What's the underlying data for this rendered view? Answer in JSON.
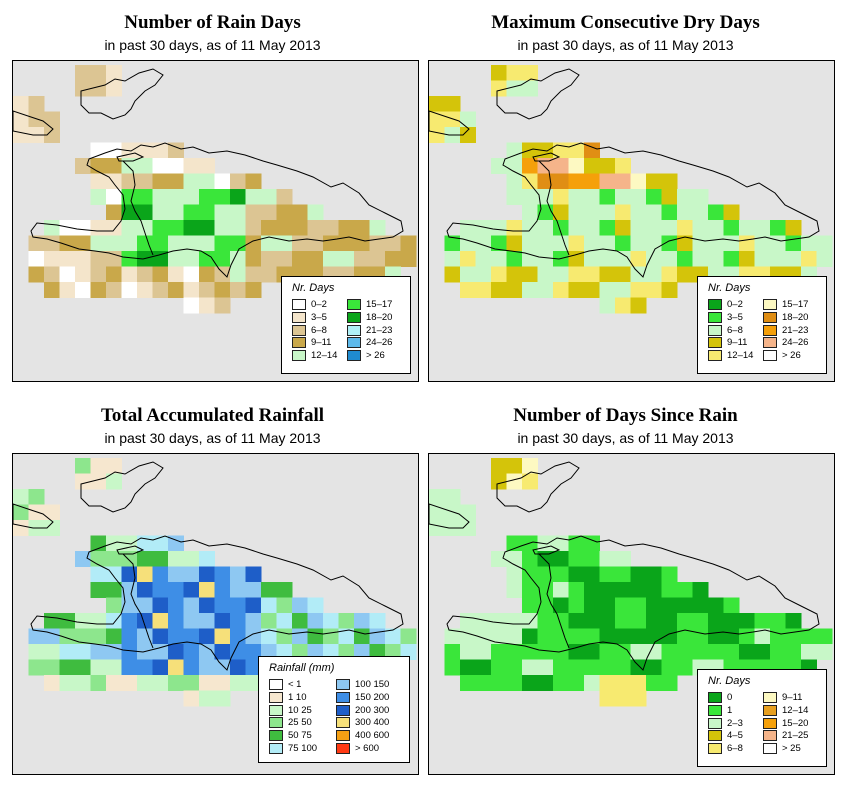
{
  "colors": {
    "background": "#e4e4e4",
    "coast": "#000000",
    "rain_days": [
      "#ffffff",
      "#f4e5cb",
      "#dcc593",
      "#c9a84a",
      "#c8f7c8",
      "#3ae63a",
      "#0aa51a",
      "#b0f0f7",
      "#5db9ea",
      "#1f8bcf"
    ],
    "dry_days": [
      "#0aa51a",
      "#3ae63a",
      "#c8f7c8",
      "#d4c40a",
      "#f7ea70",
      "#fdf9c2",
      "#e08e14",
      "#f5a00a",
      "#f5b48a",
      "#ffffff"
    ],
    "rainfall": [
      "#ffffff",
      "#f6e7cf",
      "#c8f7c8",
      "#8de68d",
      "#3fbc3f",
      "#b2ecf7",
      "#8ec8f2",
      "#3e8ee6",
      "#1e5ec8",
      "#f6e07a",
      "#f5a014",
      "#ff3a14"
    ],
    "since_rain": [
      "#0aa51a",
      "#3ae63a",
      "#c8f7c8",
      "#d4c40a",
      "#f7ea70",
      "#fdf9c2",
      "#e8a020",
      "#f5a00a",
      "#f5b48a",
      "#ffffff"
    ]
  },
  "panels": [
    {
      "title": "Number of Rain Days",
      "subtitle": "in past 30 days, as of  11 May 2013",
      "legend": {
        "title": "Nr. Days",
        "items": [
          {
            "label": "0–2",
            "color": "#ffffff"
          },
          {
            "label": "3–5",
            "color": "#f4e5cb"
          },
          {
            "label": "6–8",
            "color": "#dcc593"
          },
          {
            "label": "9–11",
            "color": "#c9a84a"
          },
          {
            "label": "12–14",
            "color": "#c8f7c8"
          },
          {
            "label": "15–17",
            "color": "#3ae63a"
          },
          {
            "label": "18–20",
            "color": "#0aa51a"
          },
          {
            "label": "21–23",
            "color": "#b0f0f7"
          },
          {
            "label": "24–26",
            "color": "#5db9ea"
          },
          {
            "label": "> 26",
            "color": "#1f8bcf"
          }
        ]
      }
    },
    {
      "title": "Maximum Consecutive Dry Days",
      "subtitle": "in past 30 days, as of  11 May 2013",
      "legend": {
        "title": "Nr. Days",
        "items": [
          {
            "label": "0–2",
            "color": "#0aa51a"
          },
          {
            "label": "3–5",
            "color": "#3ae63a"
          },
          {
            "label": "6–8",
            "color": "#c8f7c8"
          },
          {
            "label": "9–11",
            "color": "#d4c40a"
          },
          {
            "label": "12–14",
            "color": "#f7ea70"
          },
          {
            "label": "15–17",
            "color": "#fdf9c2"
          },
          {
            "label": "18–20",
            "color": "#e08e14"
          },
          {
            "label": "21–23",
            "color": "#f5a00a"
          },
          {
            "label": "24–26",
            "color": "#f5b48a"
          },
          {
            "label": "> 26",
            "color": "#ffffff"
          }
        ]
      }
    },
    {
      "title": "Total Accumulated Rainfall",
      "subtitle": "in past 30 days, as of  11 May 2013",
      "legend": {
        "title": "Rainfall (mm)",
        "items": [
          {
            "label": "< 1",
            "color": "#ffffff"
          },
          {
            "label": "1   10",
            "color": "#f6e7cf"
          },
          {
            "label": "10   25",
            "color": "#c8f7c8"
          },
          {
            "label": "25   50",
            "color": "#8de68d"
          },
          {
            "label": "50   75",
            "color": "#3fbc3f"
          },
          {
            "label": "75   100",
            "color": "#b2ecf7"
          },
          {
            "label": "100   150",
            "color": "#8ec8f2"
          },
          {
            "label": "150   200",
            "color": "#3e8ee6"
          },
          {
            "label": "200   300",
            "color": "#1e5ec8"
          },
          {
            "label": "300   400",
            "color": "#f6e07a"
          },
          {
            "label": "400   600",
            "color": "#f5a014"
          },
          {
            "label": "> 600",
            "color": "#ff3a14"
          }
        ]
      }
    },
    {
      "title": "Number of Days Since Rain",
      "subtitle": "in past 30 days, as of  11 May 2013",
      "legend": {
        "title": "Nr. Days",
        "items": [
          {
            "label": "0",
            "color": "#0aa51a"
          },
          {
            "label": "1",
            "color": "#3ae63a"
          },
          {
            "label": "2–3",
            "color": "#c8f7c8"
          },
          {
            "label": "4–5",
            "color": "#d4c40a"
          },
          {
            "label": "6–8",
            "color": "#f7ea70"
          },
          {
            "label": "9–11",
            "color": "#fdf9c2"
          },
          {
            "label": "12–14",
            "color": "#e8a020"
          },
          {
            "label": "15–20",
            "color": "#f5a00a"
          },
          {
            "label": "21–25",
            "color": "#f5b48a"
          },
          {
            "label": "> 25",
            "color": "#ffffff"
          }
        ]
      }
    }
  ]
}
